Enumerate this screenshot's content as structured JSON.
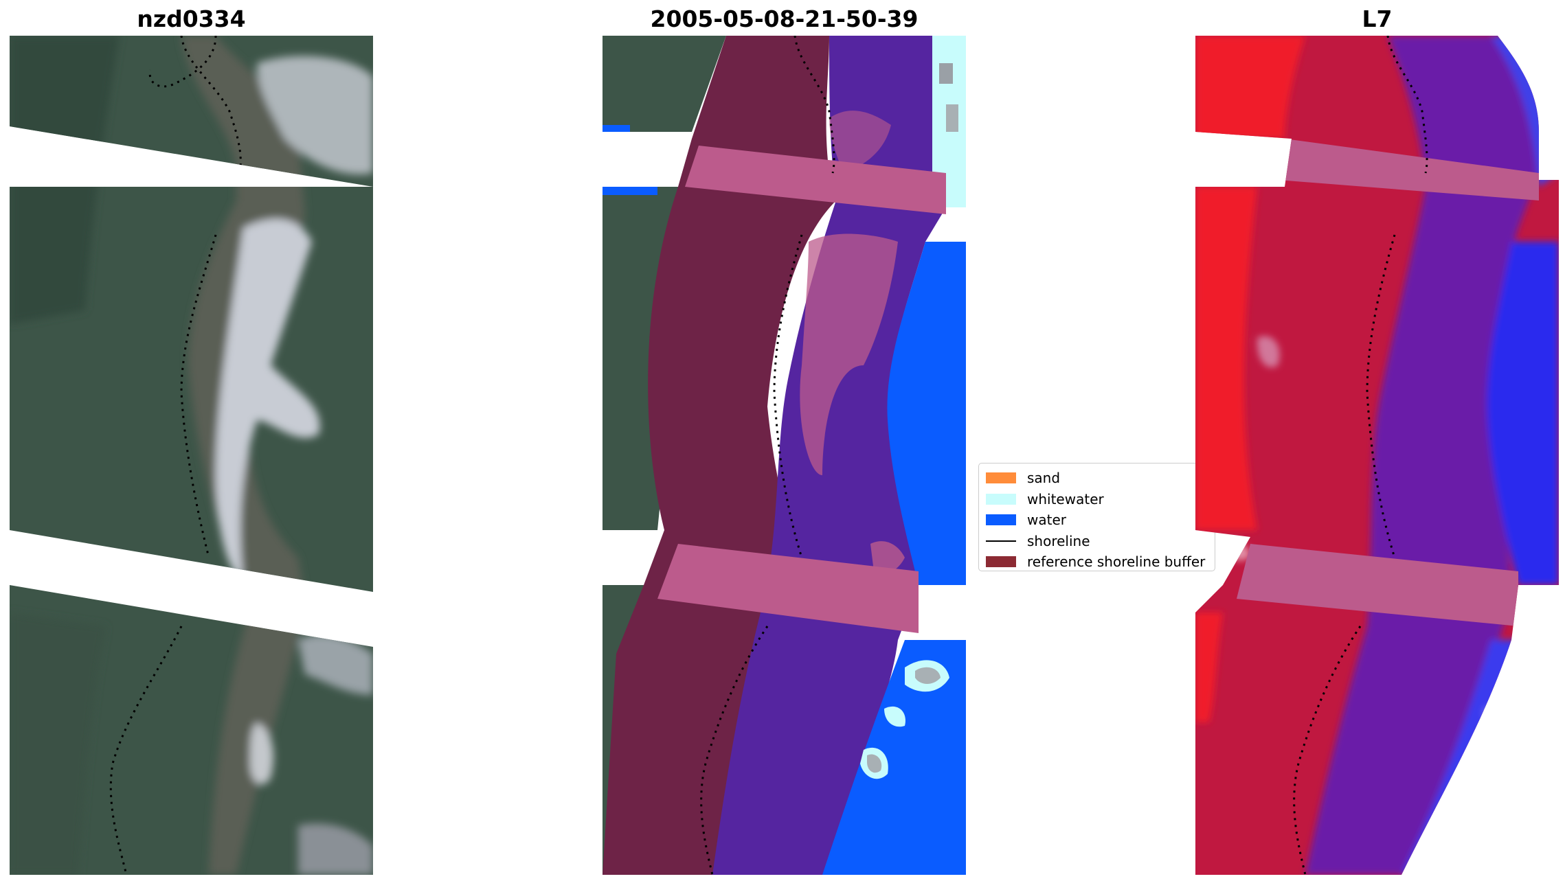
{
  "panels": [
    {
      "title": "nzd0334",
      "kind": "rgb-image"
    },
    {
      "title": "2005-05-08-21-50-39",
      "kind": "classified-image"
    },
    {
      "title": "L7",
      "kind": "index-image"
    }
  ],
  "legend": {
    "items": [
      {
        "label": "sand",
        "color": "#ff8c3a",
        "type": "patch"
      },
      {
        "label": "whitewater",
        "color": "#c8fcfc",
        "type": "patch"
      },
      {
        "label": "water",
        "color": "#0a5cff",
        "type": "patch"
      },
      {
        "label": "shoreline",
        "color": "#000000",
        "type": "line"
      },
      {
        "label": "reference shoreline buffer",
        "color": "#8c2a33",
        "type": "patch"
      }
    ]
  },
  "colors": {
    "vegetation": "#3d5548",
    "buffer": "#bc5b8c",
    "land_overlay": "#6e2347",
    "water_overlay": "#5525a0",
    "water_class": "#0a5cff",
    "whitewater": "#c8fcfc",
    "index_red": "#f01c2c",
    "index_crimson": "#c01840",
    "index_purple": "#6a1ea8",
    "index_blue": "#2a2aee"
  }
}
